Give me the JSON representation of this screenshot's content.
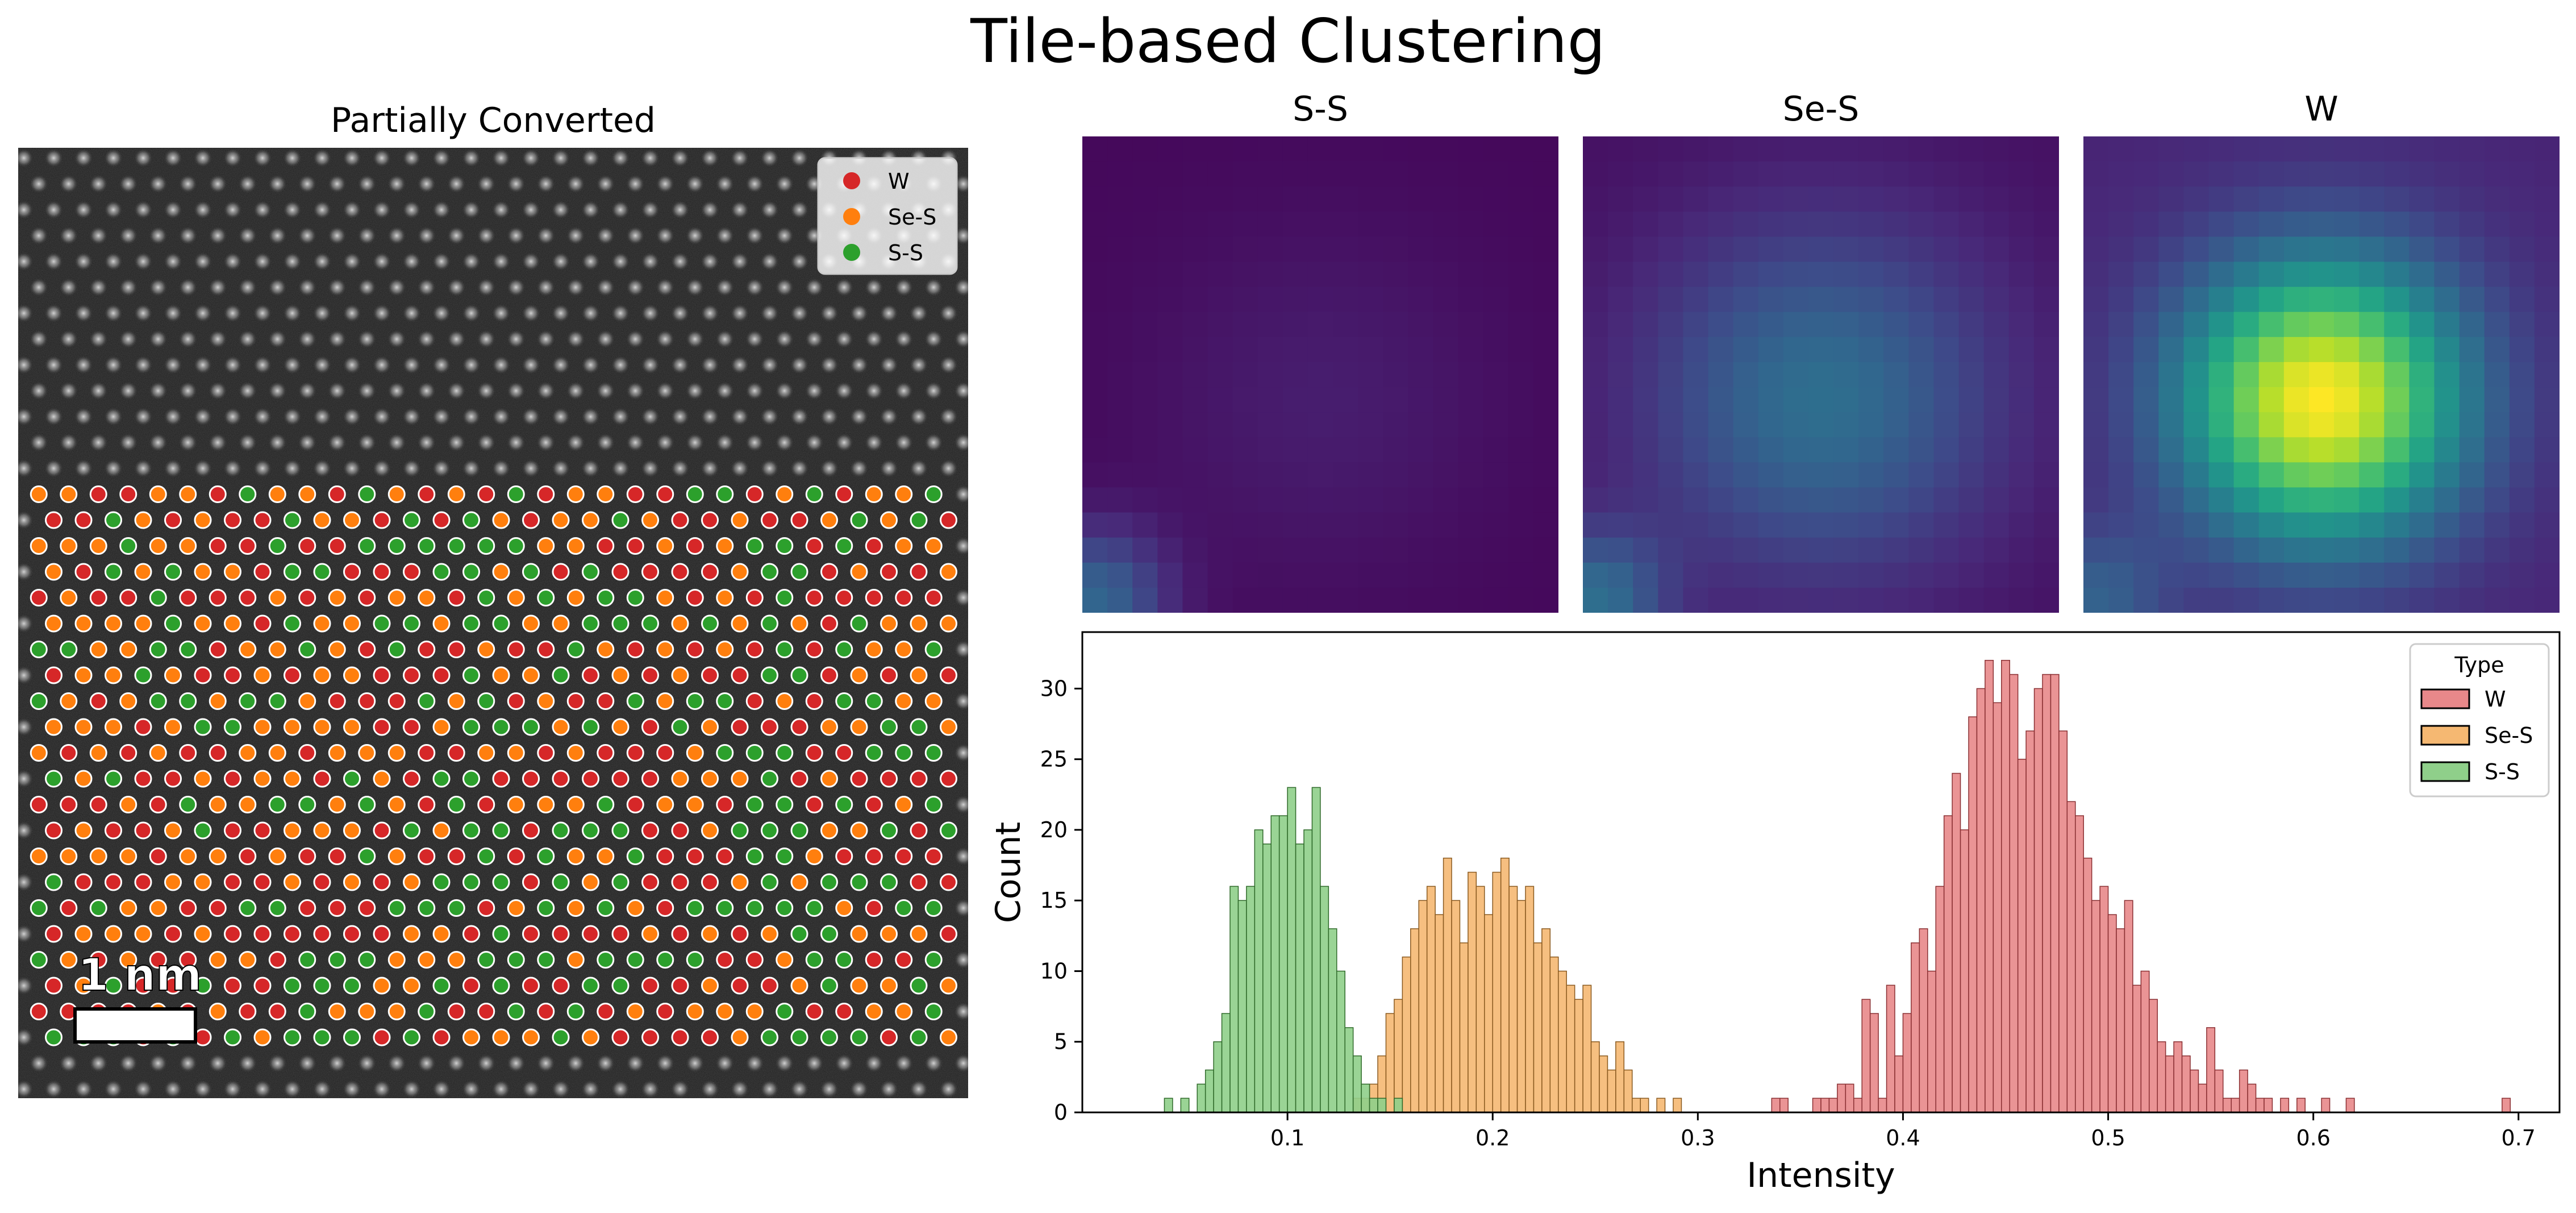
{
  "suptitle": "Tile-based Clustering",
  "stem": {
    "title": "Partially Converted",
    "scalebar_label": "1 nm",
    "legend": [
      {
        "label": "W",
        "color": "#d62728"
      },
      {
        "label": "Se-S",
        "color": "#ff7f0e"
      },
      {
        "label": "S-S",
        "color": "#2ca02c"
      }
    ],
    "colors": {
      "W": "#d62728",
      "Se-S": "#ff7f0e",
      "S-S": "#2ca02c"
    }
  },
  "tiles": [
    {
      "title": "S-S",
      "center_level": 0.08,
      "edge_level": 0.02,
      "corner_level": 0.3
    },
    {
      "title": "Se-S",
      "center_level": 0.36,
      "edge_level": 0.04,
      "corner_level": 0.3
    },
    {
      "title": "W",
      "center_level": 1.0,
      "edge_level": 0.1,
      "corner_level": 0.2
    }
  ],
  "chart_data": {
    "type": "histogram",
    "xlabel": "Intensity",
    "ylabel": "Count",
    "xlim": [
      0.0,
      0.72
    ],
    "ylim": [
      0,
      34
    ],
    "x_ticks": [
      0.1,
      0.2,
      0.3,
      0.4,
      0.5,
      0.6,
      0.7
    ],
    "y_ticks": [
      0,
      5,
      10,
      15,
      20,
      25,
      30
    ],
    "bin_width": 0.004,
    "legend_title": "Type",
    "legend_position": "upper right",
    "series": [
      {
        "name": "W",
        "color": "#e8888a",
        "edge": "#8a3033",
        "bins": [
          [
            0.336,
            1
          ],
          [
            0.34,
            1
          ],
          [
            0.356,
            1
          ],
          [
            0.36,
            1
          ],
          [
            0.364,
            1
          ],
          [
            0.368,
            2
          ],
          [
            0.372,
            2
          ],
          [
            0.376,
            1
          ],
          [
            0.38,
            8
          ],
          [
            0.384,
            7
          ],
          [
            0.388,
            1
          ],
          [
            0.392,
            9
          ],
          [
            0.396,
            4
          ],
          [
            0.4,
            7
          ],
          [
            0.404,
            12
          ],
          [
            0.408,
            13
          ],
          [
            0.412,
            10
          ],
          [
            0.416,
            16
          ],
          [
            0.42,
            21
          ],
          [
            0.424,
            24
          ],
          [
            0.428,
            20
          ],
          [
            0.432,
            28
          ],
          [
            0.436,
            30
          ],
          [
            0.44,
            32
          ],
          [
            0.444,
            29
          ],
          [
            0.448,
            32
          ],
          [
            0.452,
            31
          ],
          [
            0.456,
            25
          ],
          [
            0.46,
            27
          ],
          [
            0.464,
            30
          ],
          [
            0.468,
            31
          ],
          [
            0.472,
            31
          ],
          [
            0.476,
            27
          ],
          [
            0.48,
            22
          ],
          [
            0.484,
            21
          ],
          [
            0.488,
            18
          ],
          [
            0.492,
            15
          ],
          [
            0.496,
            16
          ],
          [
            0.5,
            14
          ],
          [
            0.504,
            13
          ],
          [
            0.508,
            15
          ],
          [
            0.512,
            9
          ],
          [
            0.516,
            10
          ],
          [
            0.52,
            8
          ],
          [
            0.524,
            5
          ],
          [
            0.528,
            4
          ],
          [
            0.532,
            5
          ],
          [
            0.536,
            4
          ],
          [
            0.54,
            3
          ],
          [
            0.544,
            2
          ],
          [
            0.548,
            6
          ],
          [
            0.552,
            3
          ],
          [
            0.556,
            1
          ],
          [
            0.56,
            1
          ],
          [
            0.564,
            3
          ],
          [
            0.568,
            2
          ],
          [
            0.572,
            1
          ],
          [
            0.576,
            1
          ],
          [
            0.584,
            1
          ],
          [
            0.592,
            1
          ],
          [
            0.604,
            1
          ],
          [
            0.616,
            1
          ],
          [
            0.692,
            1
          ]
        ]
      },
      {
        "name": "Se-S",
        "color": "#f5b872",
        "edge": "#8a5a20",
        "bins": [
          [
            0.132,
            1
          ],
          [
            0.136,
            1
          ],
          [
            0.14,
            2
          ],
          [
            0.144,
            4
          ],
          [
            0.148,
            7
          ],
          [
            0.152,
            8
          ],
          [
            0.156,
            11
          ],
          [
            0.16,
            13
          ],
          [
            0.164,
            15
          ],
          [
            0.168,
            16
          ],
          [
            0.172,
            14
          ],
          [
            0.176,
            18
          ],
          [
            0.18,
            15
          ],
          [
            0.184,
            12
          ],
          [
            0.188,
            17
          ],
          [
            0.192,
            16
          ],
          [
            0.196,
            14
          ],
          [
            0.2,
            17
          ],
          [
            0.204,
            18
          ],
          [
            0.208,
            16
          ],
          [
            0.212,
            15
          ],
          [
            0.216,
            16
          ],
          [
            0.22,
            12
          ],
          [
            0.224,
            13
          ],
          [
            0.228,
            11
          ],
          [
            0.232,
            10
          ],
          [
            0.236,
            9
          ],
          [
            0.24,
            8
          ],
          [
            0.244,
            9
          ],
          [
            0.248,
            5
          ],
          [
            0.252,
            4
          ],
          [
            0.256,
            3
          ],
          [
            0.26,
            5
          ],
          [
            0.264,
            3
          ],
          [
            0.268,
            1
          ],
          [
            0.272,
            1
          ],
          [
            0.28,
            1
          ],
          [
            0.288,
            1
          ]
        ]
      },
      {
        "name": "S-S",
        "color": "#8fcf8a",
        "edge": "#2f6a2a",
        "bins": [
          [
            0.04,
            1
          ],
          [
            0.048,
            1
          ],
          [
            0.056,
            2
          ],
          [
            0.06,
            3
          ],
          [
            0.064,
            5
          ],
          [
            0.068,
            7
          ],
          [
            0.072,
            16
          ],
          [
            0.076,
            15
          ],
          [
            0.08,
            16
          ],
          [
            0.084,
            20
          ],
          [
            0.088,
            19
          ],
          [
            0.092,
            21
          ],
          [
            0.096,
            21
          ],
          [
            0.1,
            23
          ],
          [
            0.104,
            19
          ],
          [
            0.108,
            20
          ],
          [
            0.112,
            23
          ],
          [
            0.116,
            16
          ],
          [
            0.12,
            13
          ],
          [
            0.124,
            10
          ],
          [
            0.128,
            6
          ],
          [
            0.132,
            4
          ],
          [
            0.136,
            2
          ],
          [
            0.14,
            1
          ],
          [
            0.144,
            1
          ],
          [
            0.152,
            1
          ]
        ]
      }
    ]
  }
}
